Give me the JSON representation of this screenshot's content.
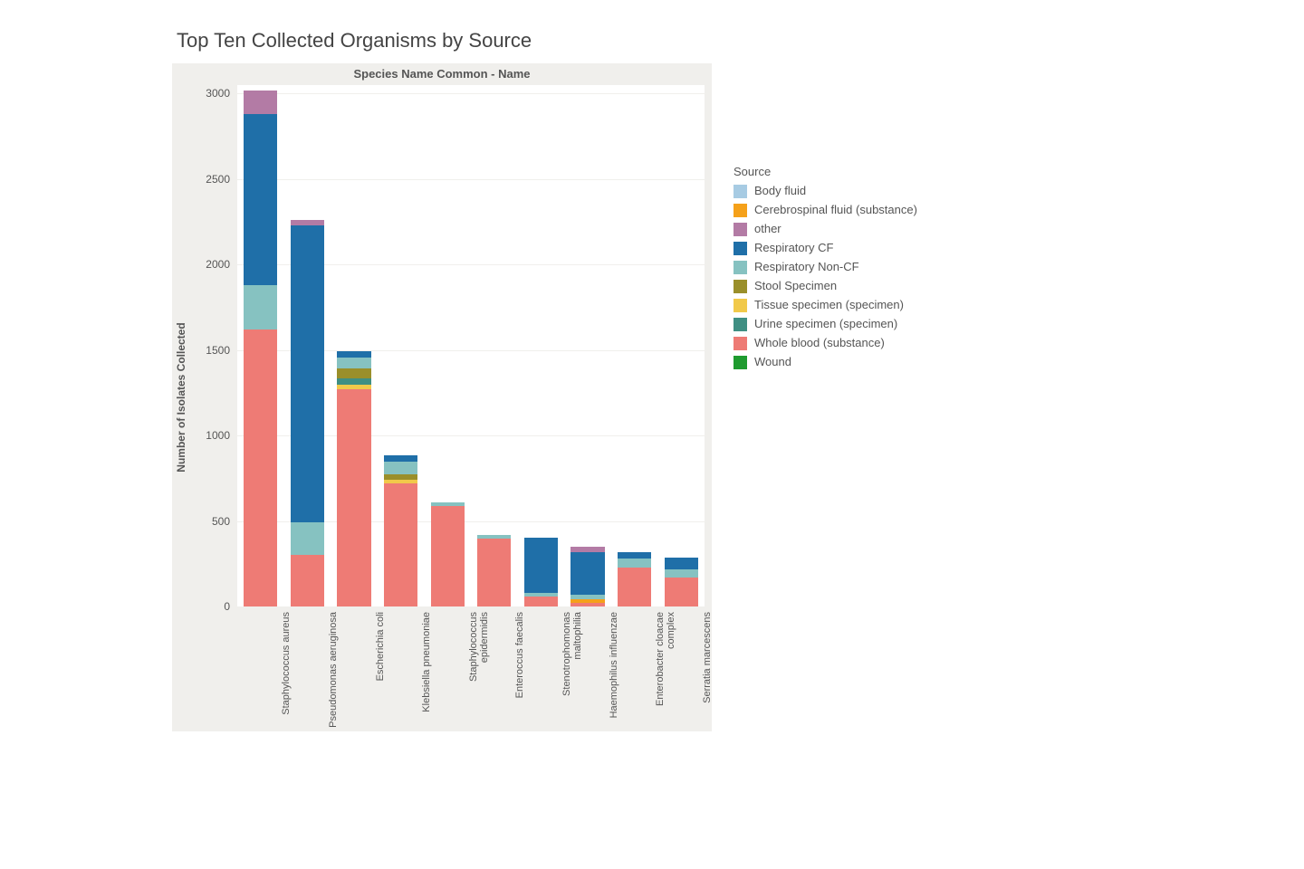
{
  "title": "Top Ten Collected Organisms by Source",
  "chart": {
    "type": "stacked-bar",
    "subtitle": "Species Name Common - Name",
    "yaxis_title": "Number of Isolates Collected",
    "background_color": "#f0efec",
    "plot_background_color": "#ffffff",
    "grid_color": "#f0efec",
    "ylim": [
      0,
      3050
    ],
    "yticks": [
      0,
      500,
      1000,
      1500,
      2000,
      2500,
      3000
    ],
    "bar_width_ratio": 0.72,
    "title_fontsize": 22,
    "subtitle_fontsize": 13,
    "axis_label_fontsize": 12,
    "tick_fontsize": 12,
    "xtick_fontsize": 11,
    "categories": [
      "Staphylococcus aureus",
      "Pseudomonas aeruginosa",
      "Escherichia coli",
      "Klebsiella pneumoniae",
      "Staphylococcus epidermidis",
      "Enteroccus faecalis",
      "Stenotrophomonas maltophilia",
      "Haemophilus influenzae",
      "Enterobacter cloacae complex",
      "Serratia marcescens"
    ],
    "sources_order": [
      "Whole blood (substance)",
      "Body fluid",
      "Cerebrospinal fluid (substance)",
      "Tissue specimen (specimen)",
      "Urine specimen (specimen)",
      "Stool Specimen",
      "Respiratory Non-CF",
      "Respiratory CF",
      "other",
      "Wound"
    ],
    "source_colors": {
      "Body fluid": "#a7cbe3",
      "Cerebrospinal fluid (substance)": "#f5a11a",
      "other": "#b37ba5",
      "Respiratory CF": "#1f6fa8",
      "Respiratory Non-CF": "#86c2c1",
      "Stool Specimen": "#9a8f2a",
      "Tissue specimen (specimen)": "#f1c94a",
      "Urine specimen (specimen)": "#3f8f83",
      "Whole blood (substance)": "#ee7b75",
      "Wound": "#1f9b2f"
    },
    "data": {
      "Staphylococcus aureus": {
        "Whole blood (substance)": 1620,
        "Respiratory Non-CF": 260,
        "Respiratory CF": 1000,
        "other": 140
      },
      "Pseudomonas aeruginosa": {
        "Whole blood (substance)": 300,
        "Respiratory Non-CF": 190,
        "Respiratory CF": 1740,
        "other": 30
      },
      "Escherichia coli": {
        "Whole blood (substance)": 1270,
        "Urine specimen (specimen)": 35,
        "Stool Specimen": 60,
        "Tissue specimen (specimen)": 30,
        "Respiratory Non-CF": 60,
        "Respiratory CF": 40
      },
      "Klebsiella pneumoniae": {
        "Whole blood (substance)": 720,
        "Stool Specimen": 35,
        "Tissue specimen (specimen)": 20,
        "Respiratory Non-CF": 70,
        "Respiratory CF": 40
      },
      "Staphylococcus epidermidis": {
        "Whole blood (substance)": 590,
        "Respiratory Non-CF": 20
      },
      "Enteroccus faecalis": {
        "Whole blood (substance)": 395,
        "Respiratory Non-CF": 25
      },
      "Stenotrophomonas maltophilia": {
        "Whole blood (substance)": 60,
        "Respiratory Non-CF": 20,
        "Respiratory CF": 320
      },
      "Haemophilus influenzae": {
        "Whole blood (substance)": 20,
        "Cerebrospinal fluid (substance)": 20,
        "Respiratory Non-CF": 30,
        "Respiratory CF": 250,
        "other": 30
      },
      "Enterobacter cloacae complex": {
        "Whole blood (substance)": 230,
        "Respiratory Non-CF": 50,
        "Respiratory CF": 40
      },
      "Serratia marcescens": {
        "Whole blood (substance)": 170,
        "Respiratory Non-CF": 45,
        "Respiratory CF": 70
      }
    }
  },
  "legend": {
    "title": "Source",
    "items": [
      "Body fluid",
      "Cerebrospinal fluid (substance)",
      "other",
      "Respiratory CF",
      "Respiratory Non-CF",
      "Stool Specimen",
      "Tissue specimen (specimen)",
      "Urine specimen (specimen)",
      "Whole blood (substance)",
      "Wound"
    ]
  }
}
